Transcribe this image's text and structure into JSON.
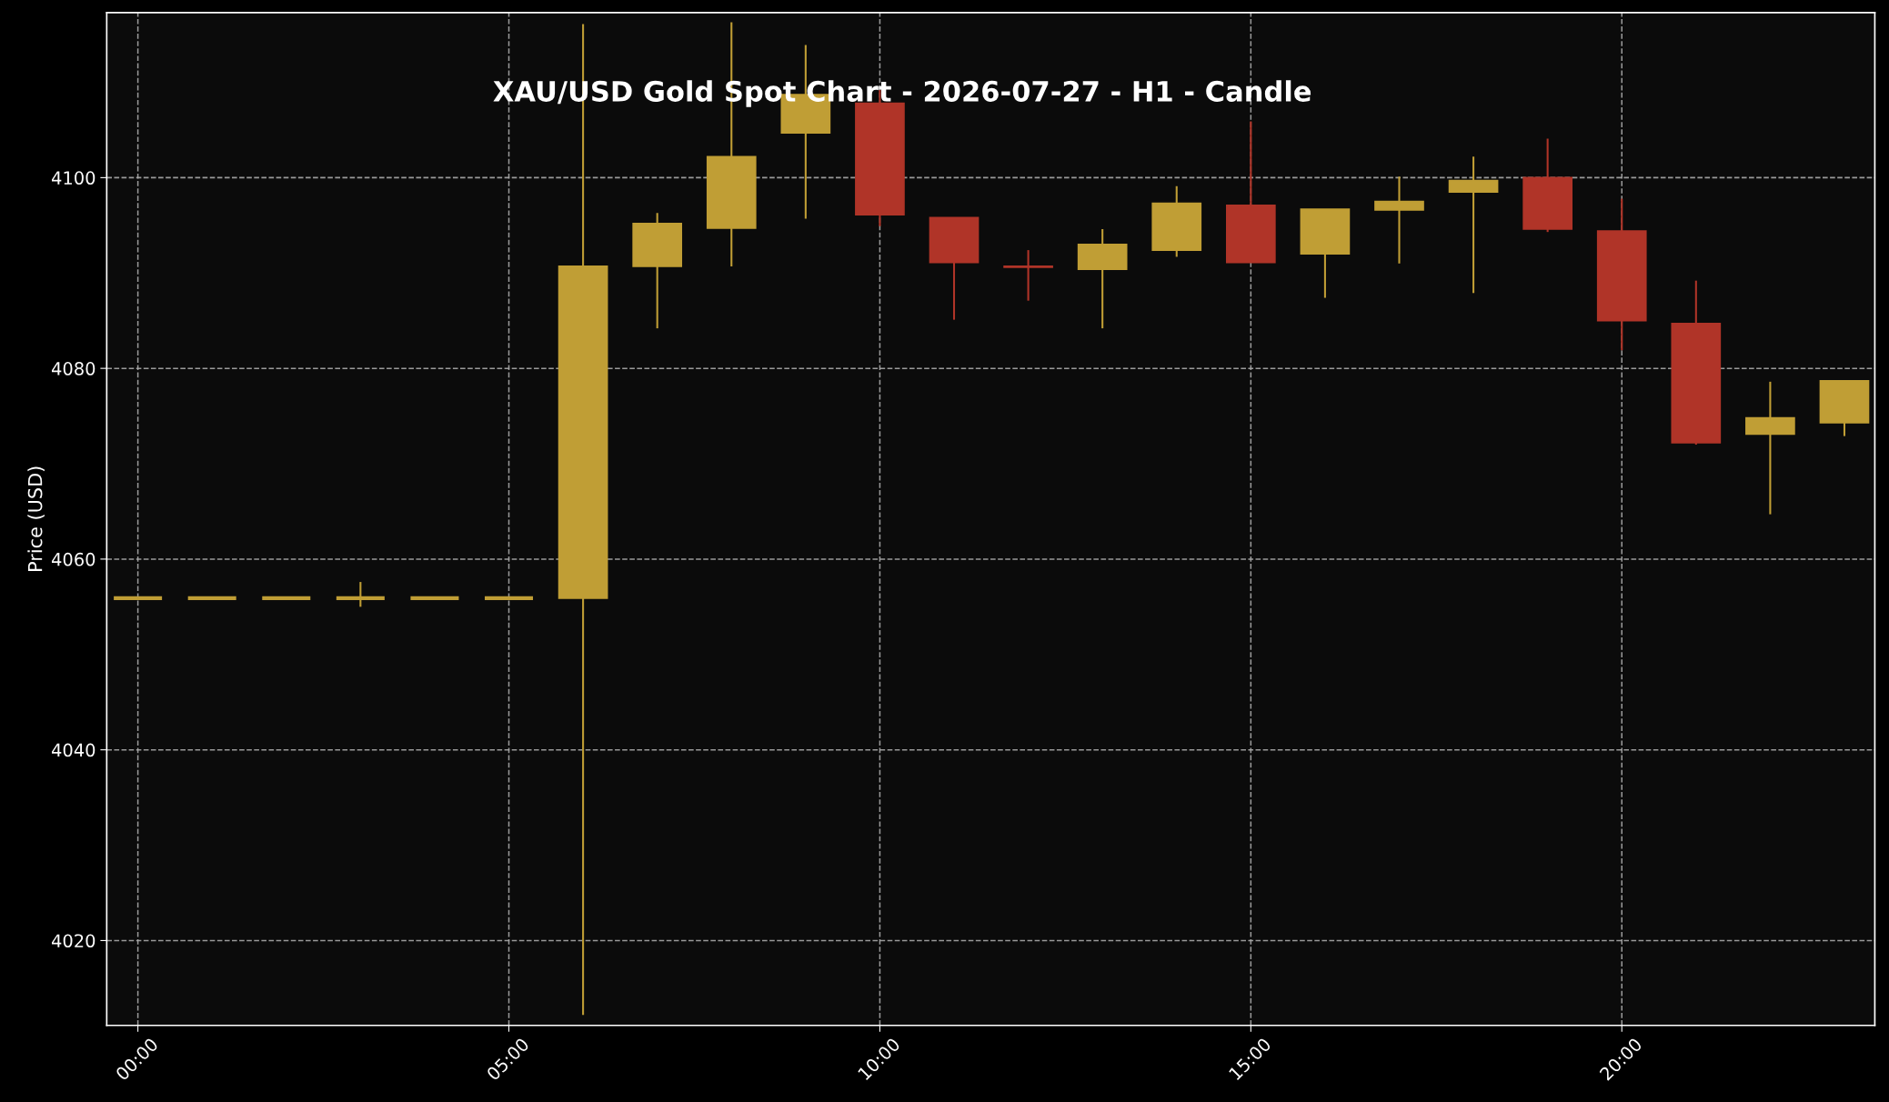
{
  "chart_data": {
    "type": "candlestick",
    "title": "XAU/USD Gold Spot Chart - 2026-07-27 - H1 - Candle",
    "ylabel": "Price (USD)",
    "x": [
      0,
      1,
      2,
      3,
      4,
      5,
      6,
      7,
      8,
      9,
      10,
      11,
      12,
      13,
      14,
      15,
      16,
      17,
      18,
      19,
      20,
      21,
      22,
      23
    ],
    "ohlc": [
      [
        4055.9,
        4055.9,
        4055.9,
        4055.9
      ],
      [
        4055.9,
        4055.9,
        4055.9,
        4055.9
      ],
      [
        4055.9,
        4055.9,
        4055.9,
        4055.9
      ],
      [
        4055.9,
        4057.6,
        4055.0,
        4055.9
      ],
      [
        4055.9,
        4055.9,
        4055.7,
        4055.9
      ],
      [
        4055.9,
        4055.9,
        4055.9,
        4055.9
      ],
      [
        4055.9,
        4116.1,
        4012.2,
        4090.7
      ],
      [
        4090.7,
        4096.3,
        4084.2,
        4095.2
      ],
      [
        4094.7,
        4116.3,
        4090.7,
        4102.2
      ],
      [
        4104.7,
        4113.9,
        4095.7,
        4108.7
      ],
      [
        4107.8,
        4109.2,
        4094.9,
        4096.1
      ],
      [
        4095.8,
        4095.8,
        4085.1,
        4091.1
      ],
      [
        4090.7,
        4092.4,
        4087.1,
        4090.6
      ],
      [
        4090.4,
        4094.6,
        4084.2,
        4093.0
      ],
      [
        4092.4,
        4099.1,
        4091.7,
        4097.3
      ],
      [
        4097.1,
        4105.9,
        4091.1,
        4091.1
      ],
      [
        4092.0,
        4096.7,
        4087.4,
        4096.7
      ],
      [
        4096.6,
        4100.1,
        4091.0,
        4097.5
      ],
      [
        4098.5,
        4102.2,
        4087.9,
        4099.7
      ],
      [
        4100.0,
        4104.1,
        4094.3,
        4094.6
      ],
      [
        4094.4,
        4097.8,
        4081.9,
        4085.0
      ],
      [
        4084.7,
        4089.2,
        4072.0,
        4072.2
      ],
      [
        4073.1,
        4078.6,
        4064.7,
        4074.8
      ],
      [
        4074.3,
        4078.7,
        4072.9,
        4078.7
      ]
    ],
    "colors": [
      "#c09e35",
      "#c09e35",
      "#c09e35",
      "#c09e35",
      "#c09e35",
      "#c09e35",
      "#c09e35",
      "#c09e35",
      "#c09e35",
      "#c09e35",
      "#b03428",
      "#b03428",
      "#b03428",
      "#c09e35",
      "#c09e35",
      "#b03428",
      "#c09e35",
      "#c09e35",
      "#c09e35",
      "#b03428",
      "#b03428",
      "#b03428",
      "#c09e35",
      "#c09e35"
    ],
    "xlim": [
      -0.42,
      23.41
    ],
    "xticks": [
      {
        "value": 0,
        "label": "00:00"
      },
      {
        "value": 5,
        "label": "05:00"
      },
      {
        "value": 10,
        "label": "10:00"
      },
      {
        "value": 15,
        "label": "15:00"
      },
      {
        "value": 20,
        "label": "20:00"
      }
    ],
    "ylim": [
      4011.1,
      4117.3
    ],
    "yticks": [
      4020,
      4040,
      4060,
      4080,
      4100
    ],
    "grid": true
  }
}
